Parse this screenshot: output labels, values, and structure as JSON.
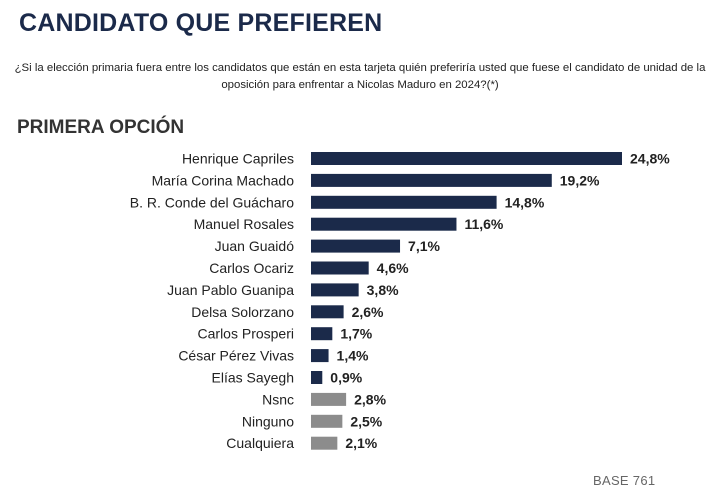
{
  "chart_data": {
    "type": "bar",
    "orientation": "horizontal",
    "title": "CANDIDATO QUE PREFIEREN",
    "question": "¿Si la elección primaria fuera entre los candidatos que están en esta tarjeta quién preferiría usted que fuese el candidato de unidad de la oposición para enfrentar a Nicolas Maduro en 2024?(*)",
    "subtitle": "PRIMERA OPCIÓN",
    "note": "BASE 761",
    "colors": {
      "candidate": "#1b2a4a",
      "other": "#8c8c8c"
    },
    "xlim": [
      0,
      24.8
    ],
    "categories": [
      "Henrique Capriles",
      "María Corina Machado",
      "B. R. Conde del Guácharo",
      "Manuel Rosales",
      "Juan  Guaidó",
      "Carlos Ocariz",
      "Juan Pablo Guanipa",
      "Delsa Solorzano",
      "Carlos Prosperi",
      "César Pérez Vivas",
      "Elías Sayegh",
      "Nsnc",
      "Ninguno",
      "Cualquiera"
    ],
    "values": [
      24.8,
      19.2,
      14.8,
      11.6,
      7.1,
      4.6,
      3.8,
      2.6,
      1.7,
      1.4,
      0.9,
      2.8,
      2.5,
      2.1
    ],
    "value_labels": [
      "24,8%",
      "19,2%",
      "14,8%",
      "11,6%",
      "7,1%",
      "4,6%",
      "3,8%",
      "2,6%",
      "1,7%",
      "1,4%",
      "0,9%",
      "2,8%",
      "2,5%",
      "2,1%"
    ],
    "group": [
      "candidate",
      "candidate",
      "candidate",
      "candidate",
      "candidate",
      "candidate",
      "candidate",
      "candidate",
      "candidate",
      "candidate",
      "candidate",
      "other",
      "other",
      "other"
    ],
    "grid": false,
    "legend": "none"
  }
}
